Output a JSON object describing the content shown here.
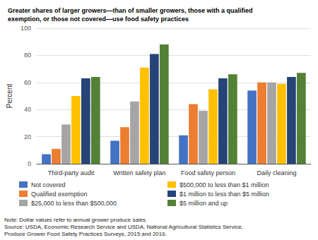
{
  "chart_data": {
    "type": "bar",
    "title": "Greater shares of larger growers—than of smaller growers, those with a qualified\nexemption, or those not covered—use food safety practices",
    "ylabel": "Percent",
    "categories": [
      "Third-party audit",
      "Written safety plan",
      "Food safety person",
      "Daily cleaning"
    ],
    "series": [
      {
        "name": "Not covered",
        "color": "#4472c4",
        "values": [
          7,
          17,
          21,
          54
        ]
      },
      {
        "name": "Qualified exemption",
        "color": "#ed7d31",
        "values": [
          11,
          27,
          44,
          60
        ]
      },
      {
        "name": "$25,000 to less than $500,000",
        "color": "#a5a5a5",
        "values": [
          29,
          46,
          39,
          60
        ]
      },
      {
        "name": "$500,000 to less than $1 million",
        "color": "#ffc000",
        "values": [
          50,
          71,
          55,
          59
        ]
      },
      {
        "name": "$1 million to less than $5 million",
        "color": "#264478",
        "values": [
          63,
          81,
          63,
          64
        ]
      },
      {
        "name": "$5 million and up",
        "color": "#538135",
        "values": [
          64,
          88,
          66,
          67
        ]
      }
    ],
    "ylim": [
      0,
      100
    ],
    "yticks": [
      0,
      20,
      40,
      60,
      80,
      100
    ],
    "grid": true,
    "legend": "bottom",
    "annotations": [
      "Note: Dollar values refer to annual grower produce sales.\nSource: USDA, Economic Research Service and USDA, National Agricultural Statistics Service,\nProduce Grower Food Safety Practices Surveys, 2015 and 2016."
    ]
  }
}
